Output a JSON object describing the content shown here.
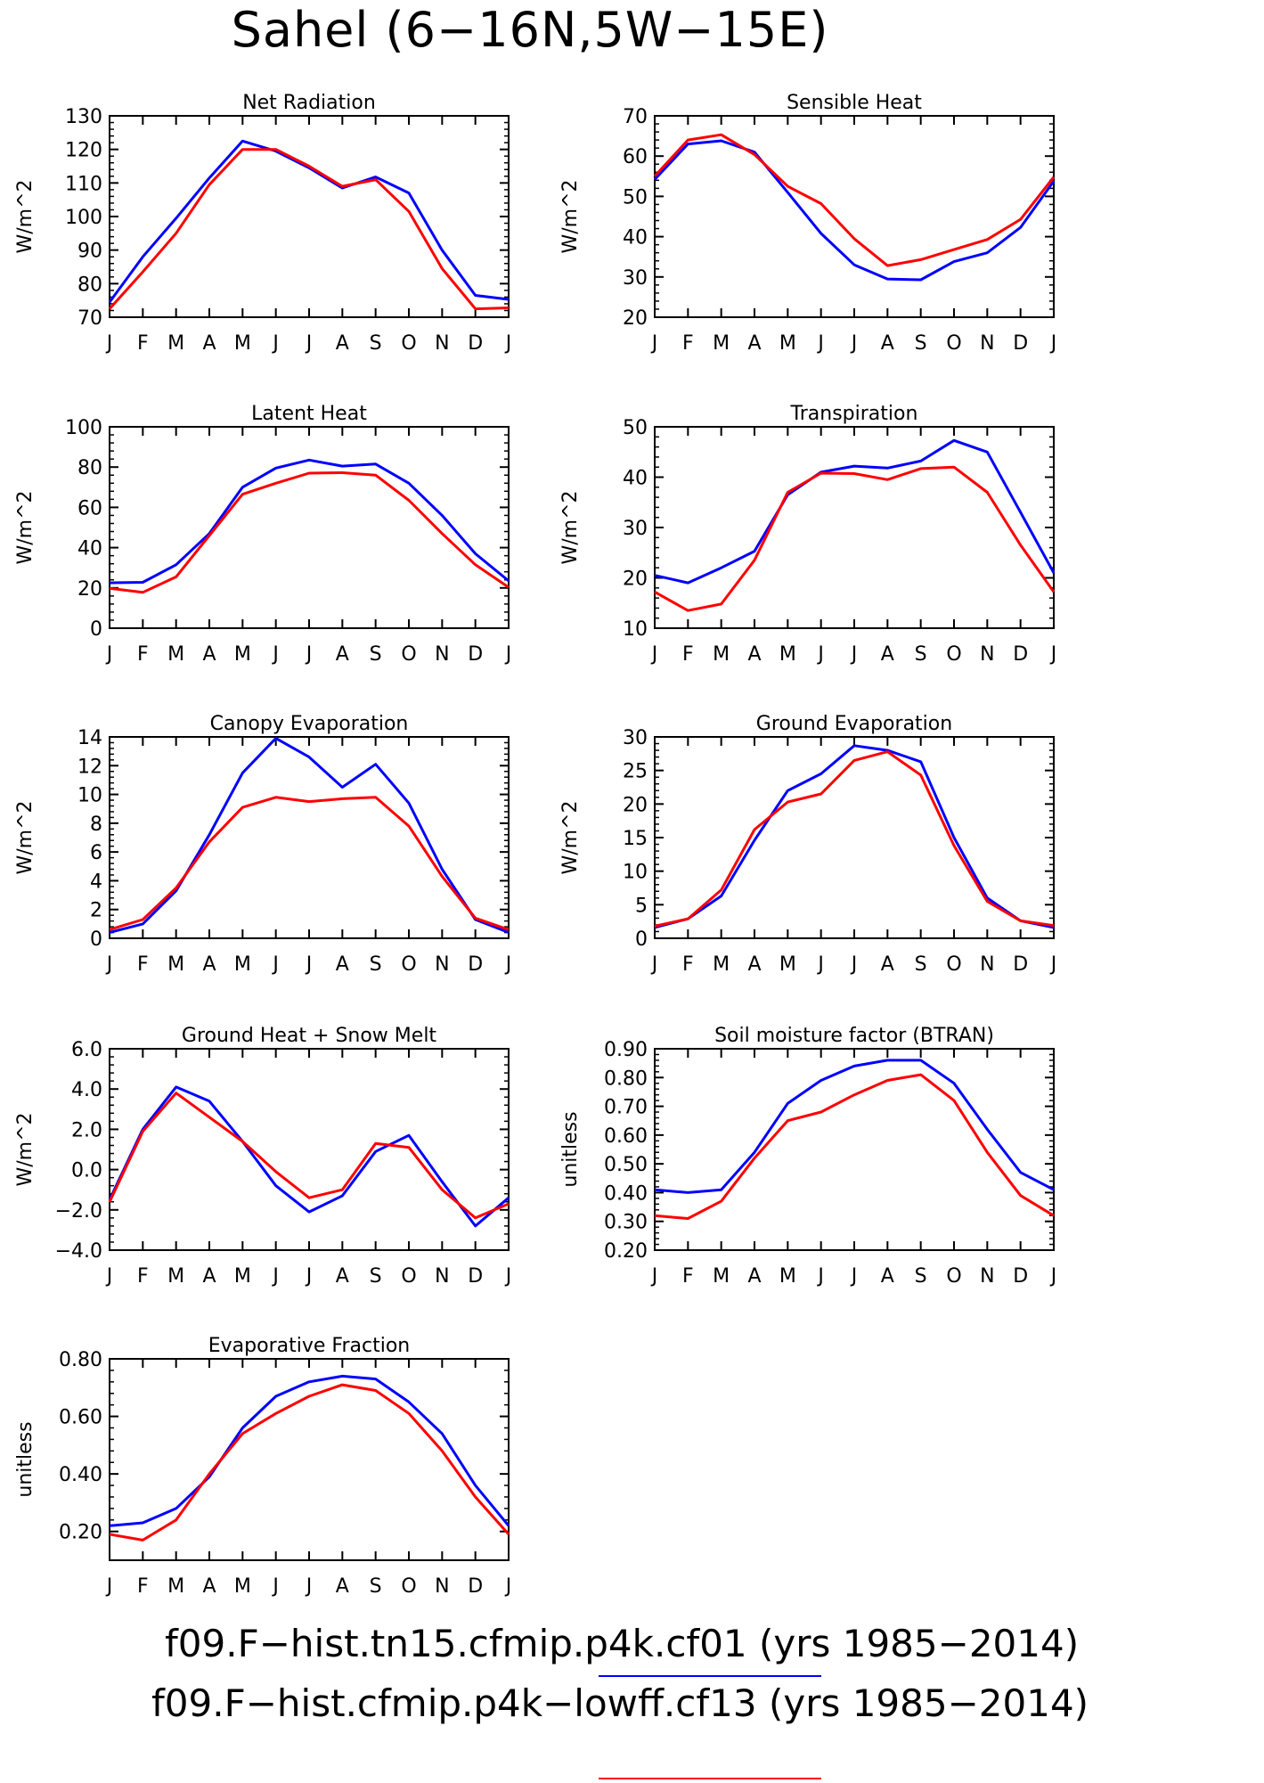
{
  "title": "Sahel (6-16N,5W-15E)",
  "months": [
    "J",
    "F",
    "M",
    "A",
    "M",
    "J",
    "J",
    "A",
    "S",
    "O",
    "N",
    "D",
    "J"
  ],
  "legend": [
    {
      "label": "f09.F-hist.tn15.cfmip.p4k.cf01 (yrs 1985-2014)",
      "color": "#0000ff"
    },
    {
      "label": "f09.F-hist.cfmip.p4k-lowff.cf13 (yrs 1985-2014)",
      "color": "#ff0000"
    }
  ],
  "chart_data": [
    {
      "type": "line",
      "title": "Net Radiation",
      "ylabel": "W/m^2",
      "ylim": [
        70,
        130
      ],
      "yticks": [
        "70",
        "80",
        "90",
        "100",
        "110",
        "120",
        "130"
      ],
      "categories": [
        "J",
        "F",
        "M",
        "A",
        "M",
        "J",
        "J",
        "A",
        "S",
        "O",
        "N",
        "D",
        "J"
      ],
      "series": [
        {
          "color": "#0000ff",
          "values": [
            74.5,
            88,
            99.5,
            111.5,
            122.5,
            119.5,
            114.5,
            108.5,
            111.8,
            107,
            90,
            76.5,
            75.3
          ]
        },
        {
          "color": "#ff0000",
          "values": [
            72.5,
            83.5,
            95,
            109.5,
            120,
            120,
            115,
            109,
            111,
            101.5,
            84.5,
            72.5,
            72.8
          ]
        }
      ]
    },
    {
      "type": "line",
      "title": "Sensible Heat",
      "ylabel": "W/m^2",
      "ylim": [
        20,
        70
      ],
      "yticks": [
        "20",
        "30",
        "40",
        "50",
        "60",
        "70"
      ],
      "categories": [
        "J",
        "F",
        "M",
        "A",
        "M",
        "J",
        "J",
        "A",
        "S",
        "O",
        "N",
        "D",
        "J"
      ],
      "series": [
        {
          "color": "#0000ff",
          "values": [
            54.2,
            63,
            63.8,
            61,
            51,
            40.8,
            33,
            29.5,
            29.3,
            33.8,
            36,
            42.3,
            53.8
          ]
        },
        {
          "color": "#ff0000",
          "values": [
            55,
            64,
            65.3,
            60.4,
            52.5,
            48.2,
            39.5,
            32.8,
            34.3,
            36.8,
            39.3,
            44.3,
            54.8
          ]
        }
      ]
    },
    {
      "type": "line",
      "title": "Latent Heat",
      "ylabel": "W/m^2",
      "ylim": [
        0,
        100
      ],
      "yticks": [
        "0",
        "20",
        "40",
        "60",
        "80",
        "100"
      ],
      "categories": [
        "J",
        "F",
        "M",
        "A",
        "M",
        "J",
        "J",
        "A",
        "S",
        "O",
        "N",
        "D",
        "J"
      ],
      "series": [
        {
          "color": "#0000ff",
          "values": [
            22.5,
            22.8,
            31.5,
            47,
            70,
            79.5,
            83.5,
            80.5,
            81.5,
            72,
            56,
            37,
            23.5
          ]
        },
        {
          "color": "#ff0000",
          "values": [
            19.8,
            17.8,
            25.5,
            46,
            66.5,
            72,
            77,
            77.2,
            76,
            63.5,
            47,
            31.5,
            20.3
          ]
        }
      ]
    },
    {
      "type": "line",
      "title": "Transpiration",
      "ylabel": "W/m^2",
      "ylim": [
        10,
        50
      ],
      "yticks": [
        "10",
        "20",
        "30",
        "40",
        "50"
      ],
      "categories": [
        "J",
        "F",
        "M",
        "A",
        "M",
        "J",
        "J",
        "A",
        "S",
        "O",
        "N",
        "D",
        "J"
      ],
      "series": [
        {
          "color": "#0000ff",
          "values": [
            20.5,
            19,
            22,
            25.3,
            36.5,
            41,
            42.2,
            41.8,
            43.2,
            47.3,
            45,
            33,
            21
          ]
        },
        {
          "color": "#ff0000",
          "values": [
            17.2,
            13.5,
            14.8,
            23.5,
            37,
            40.8,
            40.7,
            39.5,
            41.7,
            42,
            37,
            26.5,
            17.2
          ]
        }
      ]
    },
    {
      "type": "line",
      "title": "Canopy Evaporation",
      "ylabel": "W/m^2",
      "ylim": [
        0,
        14
      ],
      "yticks": [
        "0",
        "2",
        "4",
        "6",
        "8",
        "10",
        "12",
        "14"
      ],
      "categories": [
        "J",
        "F",
        "M",
        "A",
        "M",
        "J",
        "J",
        "A",
        "S",
        "O",
        "N",
        "D",
        "J"
      ],
      "series": [
        {
          "color": "#0000ff",
          "values": [
            0.4,
            1,
            3.3,
            7.2,
            11.5,
            13.9,
            12.6,
            10.5,
            12.1,
            9.4,
            4.8,
            1.3,
            0.4
          ]
        },
        {
          "color": "#ff0000",
          "values": [
            0.6,
            1.3,
            3.5,
            6.7,
            9.1,
            9.8,
            9.5,
            9.7,
            9.8,
            7.8,
            4.3,
            1.4,
            0.6
          ]
        }
      ]
    },
    {
      "type": "line",
      "title": "Ground Evaporation",
      "ylabel": "W/m^2",
      "ylim": [
        0,
        30
      ],
      "yticks": [
        "0",
        "5",
        "10",
        "15",
        "20",
        "25",
        "30"
      ],
      "categories": [
        "J",
        "F",
        "M",
        "A",
        "M",
        "J",
        "J",
        "A",
        "S",
        "O",
        "N",
        "D",
        "J"
      ],
      "series": [
        {
          "color": "#0000ff",
          "values": [
            1.6,
            2.9,
            6.3,
            14.6,
            22,
            24.5,
            28.7,
            28,
            26.3,
            15,
            6,
            2.6,
            1.6
          ]
        },
        {
          "color": "#ff0000",
          "values": [
            1.8,
            2.9,
            7.2,
            16.2,
            20.3,
            21.5,
            26.5,
            27.8,
            24.3,
            13.8,
            5.5,
            2.6,
            1.9
          ]
        }
      ]
    },
    {
      "type": "line",
      "title": "Ground Heat + Snow Melt",
      "ylabel": "W/m^2",
      "ylim": [
        -4,
        6
      ],
      "yticks": [
        "−4.0",
        "−2.0",
        "0.0",
        "2.0",
        "4.0",
        "6.0"
      ],
      "categories": [
        "J",
        "F",
        "M",
        "A",
        "M",
        "J",
        "J",
        "A",
        "S",
        "O",
        "N",
        "D",
        "J"
      ],
      "series": [
        {
          "color": "#0000ff",
          "values": [
            -1.5,
            2,
            4.1,
            3.4,
            1.4,
            -0.8,
            -2.1,
            -1.3,
            0.9,
            1.7,
            -0.6,
            -2.8,
            -1.4
          ]
        },
        {
          "color": "#ff0000",
          "values": [
            -1.6,
            1.9,
            3.8,
            2.6,
            1.4,
            -0.1,
            -1.4,
            -1,
            1.3,
            1.1,
            -1,
            -2.4,
            -1.7
          ]
        }
      ]
    },
    {
      "type": "line",
      "title": "Soil moisture factor (BTRAN)",
      "ylabel": "unitless",
      "ylim": [
        0.2,
        0.9
      ],
      "yticks": [
        "0.20",
        "0.30",
        "0.40",
        "0.50",
        "0.60",
        "0.70",
        "0.80",
        "0.90"
      ],
      "categories": [
        "J",
        "F",
        "M",
        "A",
        "M",
        "J",
        "J",
        "A",
        "S",
        "O",
        "N",
        "D",
        "J"
      ],
      "series": [
        {
          "color": "#0000ff",
          "values": [
            0.41,
            0.4,
            0.41,
            0.54,
            0.71,
            0.79,
            0.84,
            0.86,
            0.86,
            0.78,
            0.62,
            0.47,
            0.41
          ]
        },
        {
          "color": "#ff0000",
          "values": [
            0.32,
            0.31,
            0.37,
            0.52,
            0.65,
            0.68,
            0.74,
            0.79,
            0.81,
            0.72,
            0.54,
            0.39,
            0.32
          ]
        }
      ]
    },
    {
      "type": "line",
      "title": "Evaporative Fraction",
      "ylabel": "unitless",
      "ylim": [
        0.1,
        0.8
      ],
      "yticks": [
        "0.20",
        "0.40",
        "0.60",
        "0.80"
      ],
      "ytick_values": [
        0.2,
        0.4,
        0.6,
        0.8
      ],
      "categories": [
        "J",
        "F",
        "M",
        "A",
        "M",
        "J",
        "J",
        "A",
        "S",
        "O",
        "N",
        "D",
        "J"
      ],
      "series": [
        {
          "color": "#0000ff",
          "values": [
            0.22,
            0.23,
            0.28,
            0.39,
            0.56,
            0.67,
            0.72,
            0.74,
            0.73,
            0.65,
            0.54,
            0.36,
            0.22
          ]
        },
        {
          "color": "#ff0000",
          "values": [
            0.19,
            0.17,
            0.24,
            0.4,
            0.54,
            0.61,
            0.67,
            0.71,
            0.69,
            0.61,
            0.48,
            0.32,
            0.19
          ]
        }
      ]
    }
  ]
}
